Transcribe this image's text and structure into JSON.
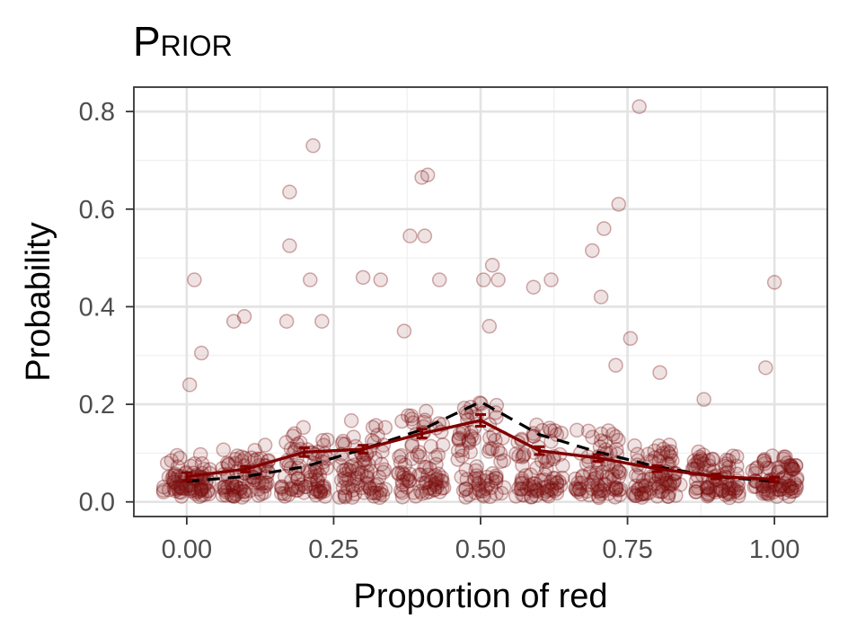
{
  "chart_data": {
    "type": "scatter",
    "title": "Prior",
    "xlabel": "Proportion of red",
    "ylabel": "Probability",
    "xlim": [
      -0.09,
      1.09
    ],
    "ylim": [
      -0.03,
      0.85
    ],
    "x_ticks": [
      "0.00",
      "0.25",
      "0.50",
      "0.75",
      "1.00"
    ],
    "y_ticks": [
      "0.0",
      "0.2",
      "0.4",
      "0.6",
      "0.8"
    ],
    "grid": true,
    "legend": "none",
    "colors": {
      "points": "#7a0f0f",
      "mean_line": "#800000",
      "reference_line": "#000000",
      "panel_border": "#333333",
      "grid_major": "#e3e3e3",
      "grid_minor": "#f0f0f0"
    },
    "series": [
      {
        "style": "mean line with error bars (solid)",
        "x": [
          0.0,
          0.1,
          0.2,
          0.3,
          0.4,
          0.5,
          0.6,
          0.7,
          0.8,
          0.9,
          1.0
        ],
        "y": [
          0.052,
          0.067,
          0.102,
          0.108,
          0.14,
          0.167,
          0.105,
          0.09,
          0.068,
          0.052,
          0.046
        ],
        "error": [
          0.008,
          0.006,
          0.009,
          0.008,
          0.009,
          0.012,
          0.008,
          0.007,
          0.006,
          0.005,
          0.005
        ]
      },
      {
        "style": "dashed line",
        "x": [
          0.0,
          0.1,
          0.2,
          0.3,
          0.4,
          0.5,
          0.6,
          0.7,
          0.8,
          0.9,
          1.0
        ],
        "y": [
          0.042,
          0.052,
          0.072,
          0.108,
          0.148,
          0.205,
          0.138,
          0.102,
          0.072,
          0.052,
          0.042
        ]
      }
    ],
    "highlighted_points": [
      {
        "x": 0.77,
        "y": 0.81
      },
      {
        "x": 0.215,
        "y": 0.73
      },
      {
        "x": 0.41,
        "y": 0.67
      },
      {
        "x": 0.4,
        "y": 0.665
      },
      {
        "x": 0.175,
        "y": 0.635
      },
      {
        "x": 0.735,
        "y": 0.61
      },
      {
        "x": 0.71,
        "y": 0.56
      },
      {
        "x": 0.38,
        "y": 0.545
      },
      {
        "x": 0.405,
        "y": 0.545
      },
      {
        "x": 0.175,
        "y": 0.525
      },
      {
        "x": 0.69,
        "y": 0.515
      },
      {
        "x": 0.52,
        "y": 0.485
      },
      {
        "x": 0.013,
        "y": 0.455
      },
      {
        "x": 0.21,
        "y": 0.455
      },
      {
        "x": 0.3,
        "y": 0.46
      },
      {
        "x": 0.33,
        "y": 0.455
      },
      {
        "x": 0.43,
        "y": 0.455
      },
      {
        "x": 0.505,
        "y": 0.455
      },
      {
        "x": 0.53,
        "y": 0.455
      },
      {
        "x": 0.62,
        "y": 0.455
      },
      {
        "x": 1.0,
        "y": 0.45
      },
      {
        "x": 0.59,
        "y": 0.44
      },
      {
        "x": 0.705,
        "y": 0.42
      },
      {
        "x": 0.098,
        "y": 0.38
      },
      {
        "x": 0.08,
        "y": 0.37
      },
      {
        "x": 0.17,
        "y": 0.37
      },
      {
        "x": 0.23,
        "y": 0.37
      },
      {
        "x": 0.37,
        "y": 0.35
      },
      {
        "x": 0.515,
        "y": 0.36
      },
      {
        "x": 0.755,
        "y": 0.335
      },
      {
        "x": 0.025,
        "y": 0.305
      },
      {
        "x": 0.985,
        "y": 0.275
      },
      {
        "x": 0.805,
        "y": 0.265
      },
      {
        "x": 0.73,
        "y": 0.28
      },
      {
        "x": 0.005,
        "y": 0.24
      },
      {
        "x": 0.88,
        "y": 0.21
      }
    ],
    "point_cloud_note": "Semi-transparent circles scattered around each x = 0.0, 0.1, ..., 1.0 (jitter about ±0.04), most with probability between 0.0 and 0.2"
  }
}
